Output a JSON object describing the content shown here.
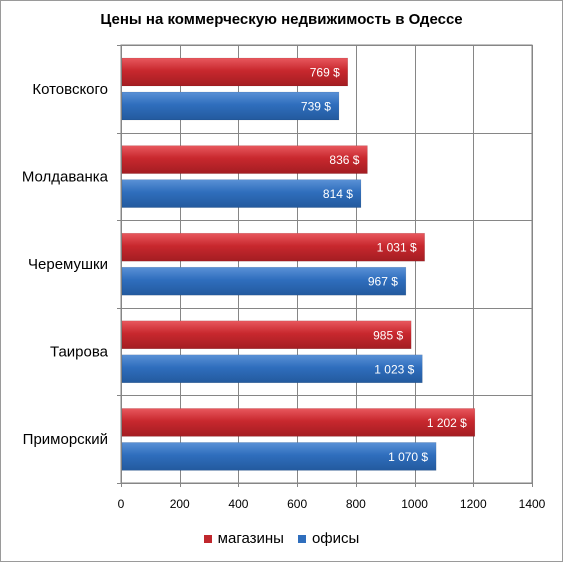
{
  "chart_data": {
    "type": "bar",
    "orientation": "horizontal",
    "title": "Цены на коммерческую недвижимость в Одессе",
    "xlabel": "",
    "ylabel": "",
    "categories": [
      "Котовского",
      "Молдаванка",
      "Черемушки",
      "Таирова",
      "Приморский"
    ],
    "series": [
      {
        "name": "магазины",
        "color": "#c0272d",
        "values": [
          769,
          836,
          1031,
          985,
          1202
        ],
        "labels": [
          "769 $",
          "836 $",
          "1 031 $",
          "985 $",
          "1 202 $"
        ]
      },
      {
        "name": "офисы",
        "color": "#2f6ebd",
        "values": [
          739,
          814,
          967,
          1023,
          1070
        ],
        "labels": [
          "739 $",
          "814 $",
          "967 $",
          "1 023 $",
          "1 070 $"
        ]
      }
    ],
    "xlim": [
      0,
      1400
    ],
    "xticks": [
      0,
      200,
      400,
      600,
      800,
      1000,
      1200,
      1400
    ],
    "xtick_labels": [
      "0",
      "200",
      "400",
      "600",
      "800",
      "1000",
      "1200",
      "1400"
    ],
    "grid": true,
    "legend_position": "bottom"
  }
}
